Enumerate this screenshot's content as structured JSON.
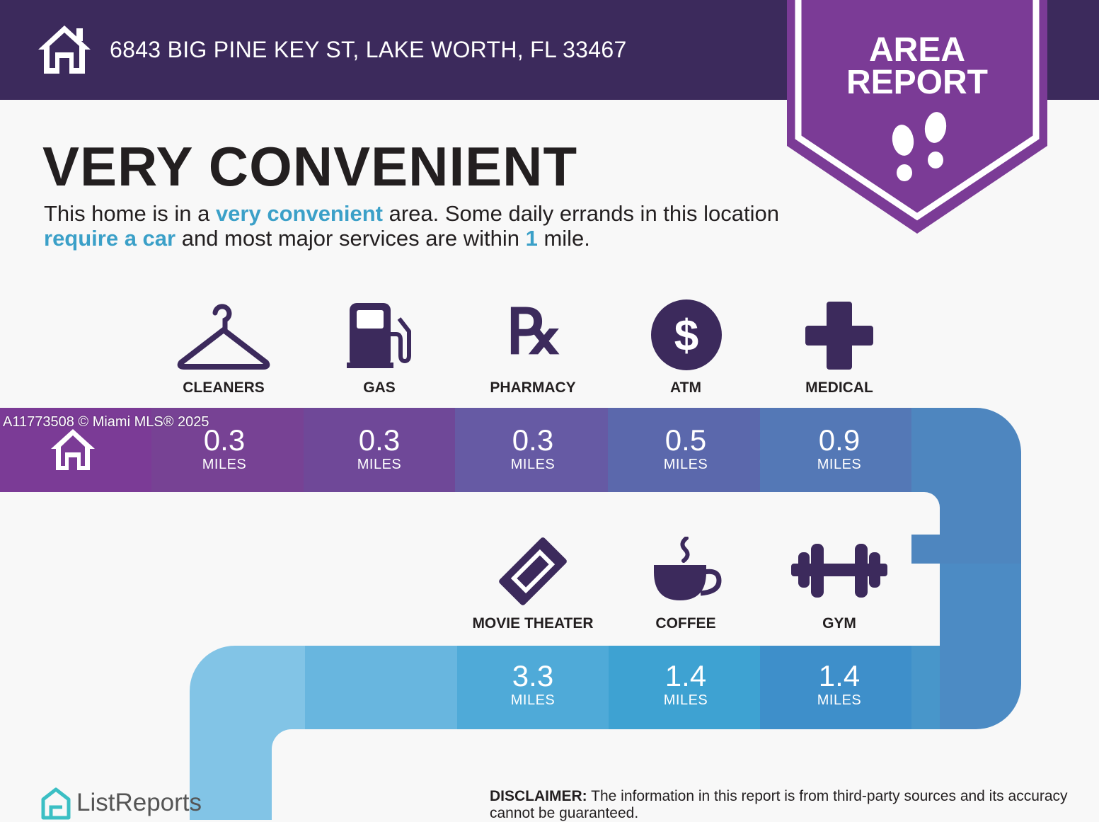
{
  "header": {
    "address": "6843 BIG PINE KEY ST, LAKE WORTH, FL 33467",
    "house_icon": "house-icon"
  },
  "badge": {
    "line1": "AREA",
    "line2": "REPORT",
    "icon": "footprints-icon",
    "color": "#7b3b96"
  },
  "headline": "VERY CONVENIENT",
  "description": {
    "p1": "This home is in a ",
    "h1": "very convenient",
    "p2": " area. Some daily errands in this location ",
    "h2": "require a car",
    "p3": " and most major services are within ",
    "h3": "1",
    "p4": " mile."
  },
  "amenities": [
    {
      "label": "CLEANERS",
      "distance": "0.3",
      "unit": "MILES",
      "icon": "hanger-icon"
    },
    {
      "label": "GAS",
      "distance": "0.3",
      "unit": "MILES",
      "icon": "gas-pump-icon"
    },
    {
      "label": "PHARMACY",
      "distance": "0.3",
      "unit": "MILES",
      "icon": "rx-icon"
    },
    {
      "label": "ATM",
      "distance": "0.5",
      "unit": "MILES",
      "icon": "dollar-icon"
    },
    {
      "label": "MEDICAL",
      "distance": "0.9",
      "unit": "MILES",
      "icon": "medical-cross-icon"
    },
    {
      "label": "MOVIE THEATER",
      "distance": "3.3",
      "unit": "MILES",
      "icon": "ticket-icon"
    },
    {
      "label": "COFFEE",
      "distance": "1.4",
      "unit": "MILES",
      "icon": "coffee-cup-icon"
    },
    {
      "label": "GYM",
      "distance": "1.4",
      "unit": "MILES",
      "icon": "dumbbell-icon"
    }
  ],
  "watermark": "A11773508 © Miami MLS® 2025",
  "footer": {
    "logo_text": "ListReports",
    "disclaimer_label": "DISCLAIMER:",
    "disclaimer_text": " The information in this report is from third-party sources and its accuracy cannot be guaranteed."
  },
  "colors": {
    "header": "#3c2a5c",
    "icon": "#3c2a5c",
    "highlight": "#3ba0c8",
    "row1": [
      "#7b3b96",
      "#774294",
      "#6f4898",
      "#665aa4",
      "#5b68ac",
      "#5478b6",
      "#4e86bf"
    ],
    "row2": [
      "#4c8bc4",
      "#4896ca",
      "#3ea2d2",
      "#4faad8",
      "#68b6df",
      "#82c4e6"
    ]
  }
}
